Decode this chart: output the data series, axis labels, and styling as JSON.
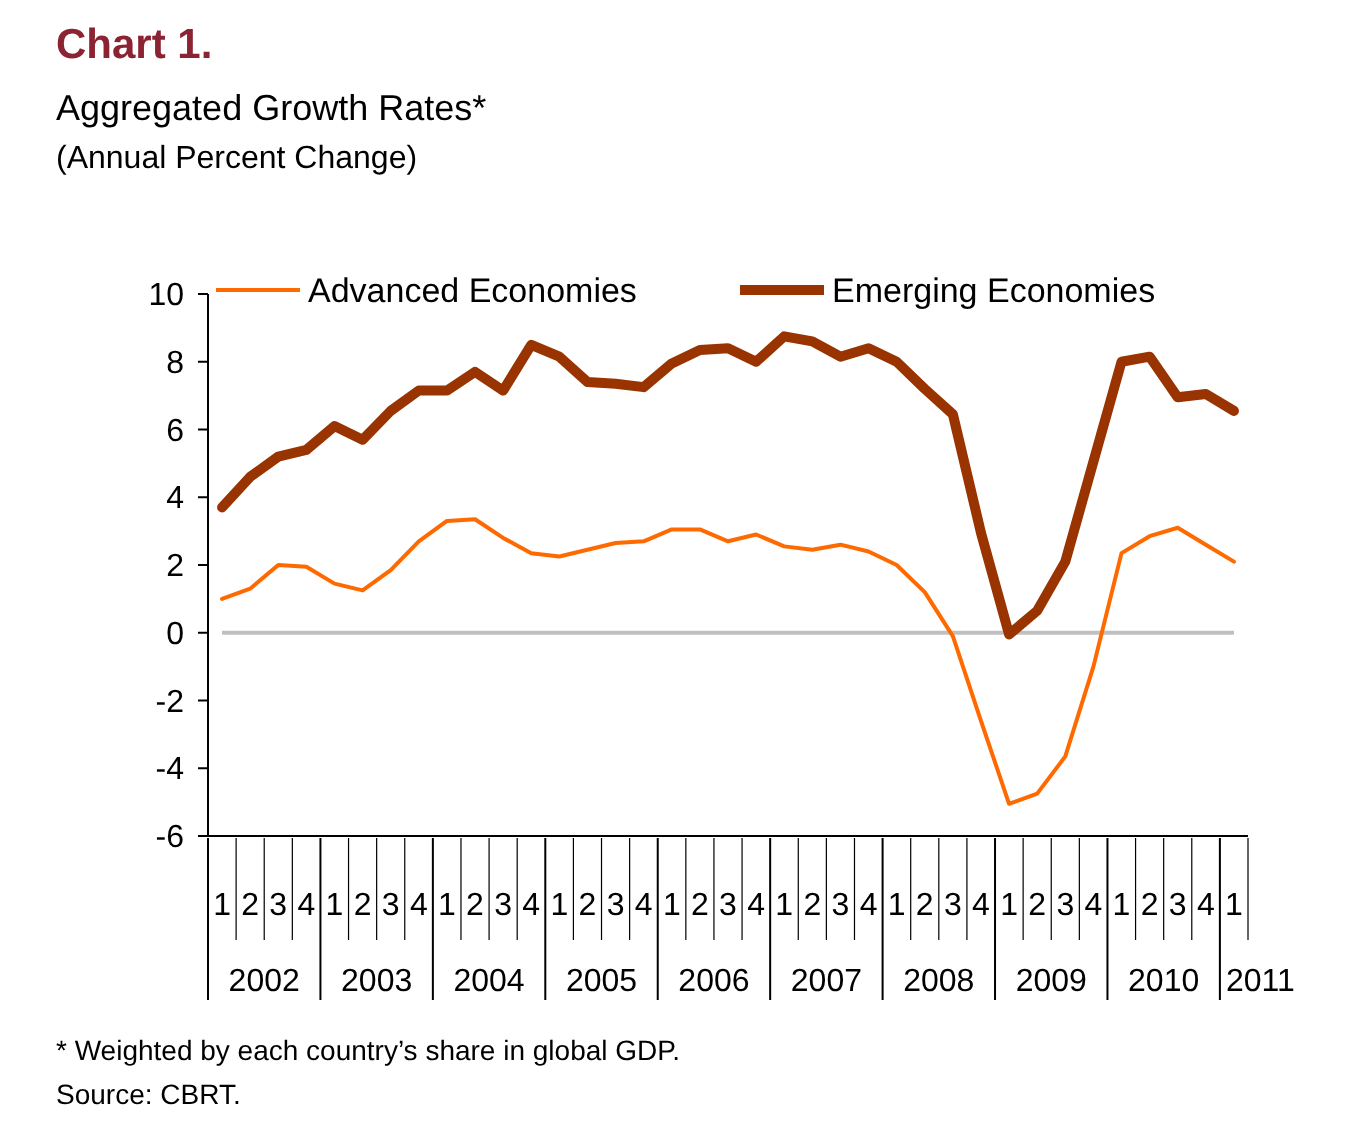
{
  "chart_data": {
    "type": "line",
    "title": "Chart 1.",
    "subtitle": "Aggregated Growth Rates*\n(Annual Percent Change)",
    "categories": [
      "1",
      "2",
      "3",
      "4",
      "1",
      "2",
      "3",
      "4",
      "1",
      "2",
      "3",
      "4",
      "1",
      "2",
      "3",
      "4",
      "1",
      "2",
      "3",
      "4",
      "1",
      "2",
      "3",
      "4",
      "1",
      "2",
      "3",
      "4",
      "1",
      "2",
      "3",
      "4",
      "1",
      "2",
      "3",
      "4",
      "1"
    ],
    "series": [
      {
        "name": "Advanced Economies",
        "color": "#ff6a00",
        "values": [
          1.0,
          1.3,
          2.0,
          1.95,
          1.45,
          1.25,
          1.85,
          2.7,
          3.3,
          3.35,
          2.8,
          2.35,
          2.25,
          2.45,
          2.65,
          2.7,
          3.05,
          3.05,
          2.7,
          2.9,
          2.55,
          2.45,
          2.6,
          2.4,
          2.0,
          1.2,
          -0.1,
          -2.6,
          -5.05,
          -4.75,
          -3.65,
          -1.0,
          2.35,
          2.85,
          3.1,
          2.6,
          2.1
        ]
      },
      {
        "name": "Emerging Economies",
        "color": "#993300",
        "values": [
          3.7,
          4.6,
          5.2,
          5.4,
          6.1,
          5.7,
          6.55,
          7.15,
          7.15,
          7.7,
          7.15,
          8.5,
          8.15,
          7.4,
          7.35,
          7.25,
          7.95,
          8.35,
          8.4,
          8.0,
          8.75,
          8.6,
          8.15,
          8.4,
          8.0,
          7.2,
          6.45,
          2.95,
          -0.05,
          0.65,
          2.1,
          5.05,
          8.0,
          8.15,
          6.95,
          7.05,
          6.55
        ]
      }
    ],
    "ylim": [
      -6,
      10
    ],
    "yticks": [
      -6,
      -4,
      -2,
      0,
      2,
      4,
      6,
      8,
      10
    ],
    "ref_lines": [
      {
        "axis": "y",
        "value": 0,
        "color": "#c0c0c0"
      }
    ],
    "legend": "top",
    "annotations": [
      "2002",
      "2003",
      "2004",
      "2005",
      "2006",
      "2007",
      "2008",
      "2009",
      "2010",
      "2011",
      "* Weighted by each country’s share in global GDP.",
      "Source: CBRT."
    ]
  }
}
